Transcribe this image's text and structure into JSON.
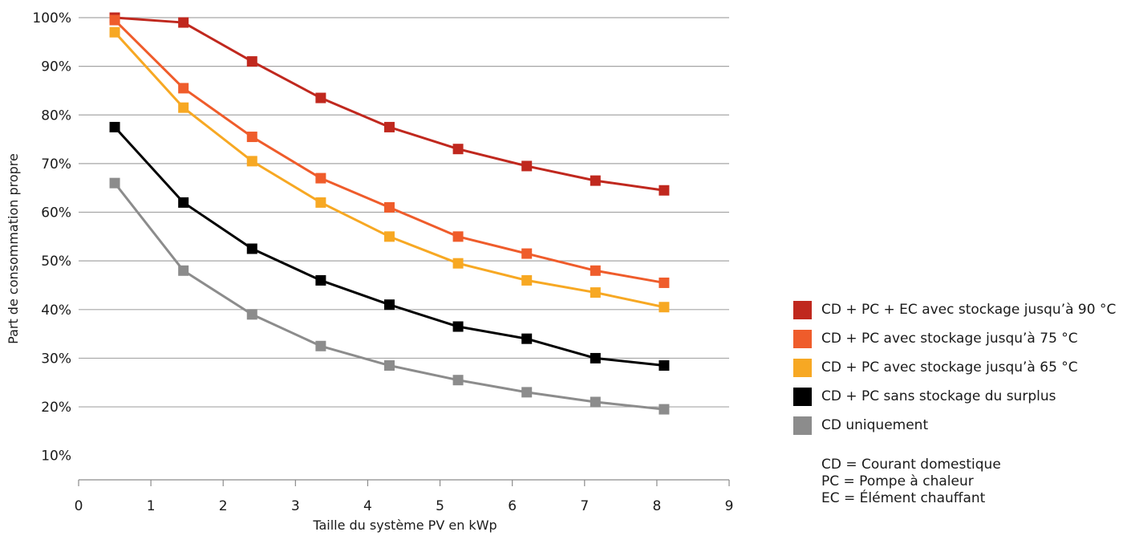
{
  "chart_data": {
    "type": "line",
    "xlabel": "Taille du système PV en kWp",
    "ylabel": "Part de consommation propre",
    "xlim": [
      0,
      9
    ],
    "ylim": [
      5,
      100
    ],
    "x_ticks": [
      "0",
      "1",
      "2",
      "3",
      "4",
      "5",
      "6",
      "7",
      "8",
      "9"
    ],
    "y_ticks": [
      "10%",
      "20%",
      "30%",
      "40%",
      "50%",
      "60%",
      "70%",
      "80%",
      "90%",
      "100%"
    ],
    "grid": "horizontal",
    "legend_position": "right",
    "x": [
      0.5,
      1.45,
      2.4,
      3.35,
      4.3,
      5.25,
      6.2,
      7.15,
      8.1
    ],
    "series": [
      {
        "name": "CD + PC + EC avec stockage jusqu’à 90 °C",
        "color": "#c0281e",
        "values": [
          100,
          99,
          91,
          83.5,
          77.5,
          73,
          69.5,
          66.5,
          64.5
        ]
      },
      {
        "name": "CD + PC avec stockage jusqu’à 75 °C",
        "color": "#ef5c2b",
        "values": [
          99.5,
          85.5,
          75.5,
          67,
          61,
          55,
          51.5,
          48,
          45.5
        ]
      },
      {
        "name": "CD + PC avec stockage jusqu’à 65 °C",
        "color": "#f7a823",
        "values": [
          97,
          81.5,
          70.5,
          62,
          55,
          49.5,
          46,
          43.5,
          40.5
        ]
      },
      {
        "name": "CD + PC sans stockage du surplus",
        "color": "#000000",
        "values": [
          77.5,
          62,
          52.5,
          46,
          41,
          36.5,
          34,
          30,
          28.5
        ]
      },
      {
        "name": "CD uniquement",
        "color": "#8c8c8c",
        "values": [
          66,
          48,
          39,
          32.5,
          28.5,
          25.5,
          23,
          21,
          19.5
        ]
      }
    ]
  },
  "abbreviations": [
    "CD = Courant domestique",
    "PC = Pompe à chaleur",
    "EC = Élément chauffant"
  ]
}
